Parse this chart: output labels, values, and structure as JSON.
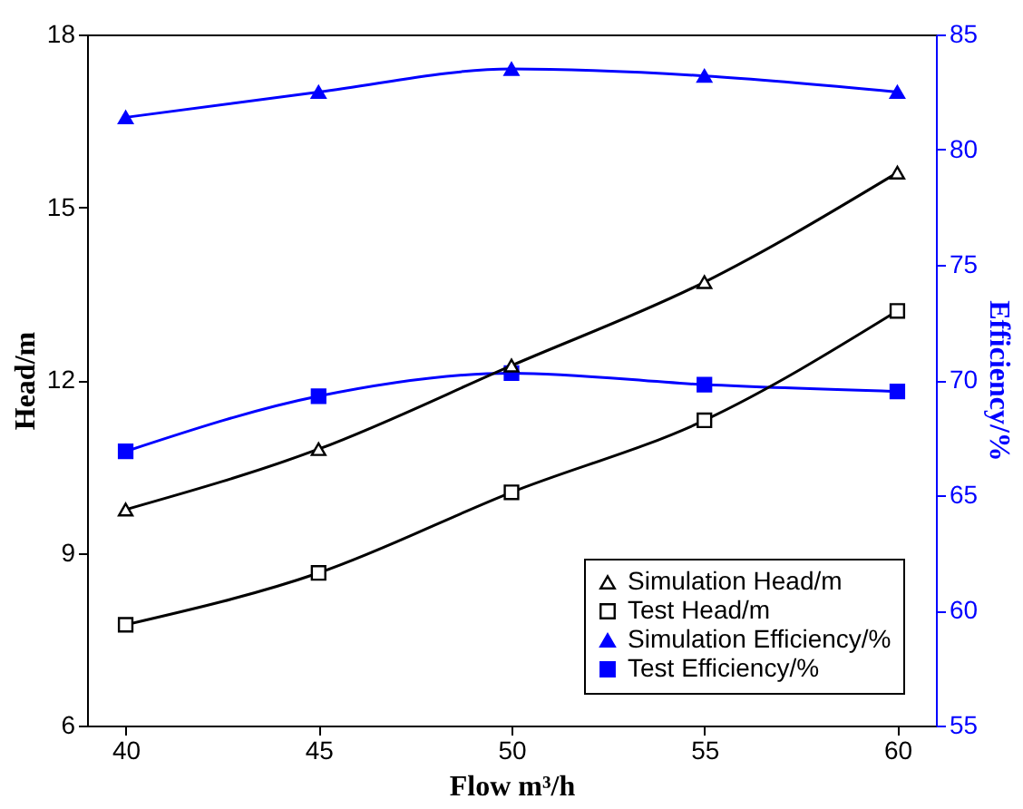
{
  "chart_data": {
    "type": "line",
    "xlabel": "Flow m³/h",
    "ylabel": "Head/m",
    "y2label": "Efficiency/%",
    "x": [
      40,
      45,
      50,
      55,
      60
    ],
    "xlim": [
      39,
      61
    ],
    "xticks": [
      40,
      45,
      50,
      55,
      60
    ],
    "ylim": [
      6,
      18
    ],
    "yticks": [
      6,
      9,
      12,
      15,
      18
    ],
    "y2lim": [
      55,
      85
    ],
    "y2ticks": [
      55,
      60,
      65,
      70,
      75,
      80,
      85
    ],
    "series": [
      {
        "name": "Simulation Head/m",
        "color": "#000000",
        "marker": "triangle",
        "axis": "y",
        "values": [
          9.75,
          10.8,
          12.25,
          13.7,
          15.6
        ]
      },
      {
        "name": "Test Head/m",
        "color": "#000000",
        "marker": "square",
        "axis": "y",
        "values": [
          7.75,
          8.65,
          10.05,
          11.3,
          13.2
        ]
      },
      {
        "name": "Simulation Efficiency/%",
        "color": "#0000ff",
        "marker": "triangle",
        "axis": "y2",
        "values": [
          81.4,
          82.5,
          83.5,
          83.2,
          82.5
        ]
      },
      {
        "name": "Test Efficiency/%",
        "color": "#0000ff",
        "marker": "square",
        "axis": "y2",
        "values": [
          66.9,
          69.3,
          70.3,
          69.8,
          69.5
        ]
      }
    ],
    "grid": false,
    "legend": "bottom right"
  }
}
